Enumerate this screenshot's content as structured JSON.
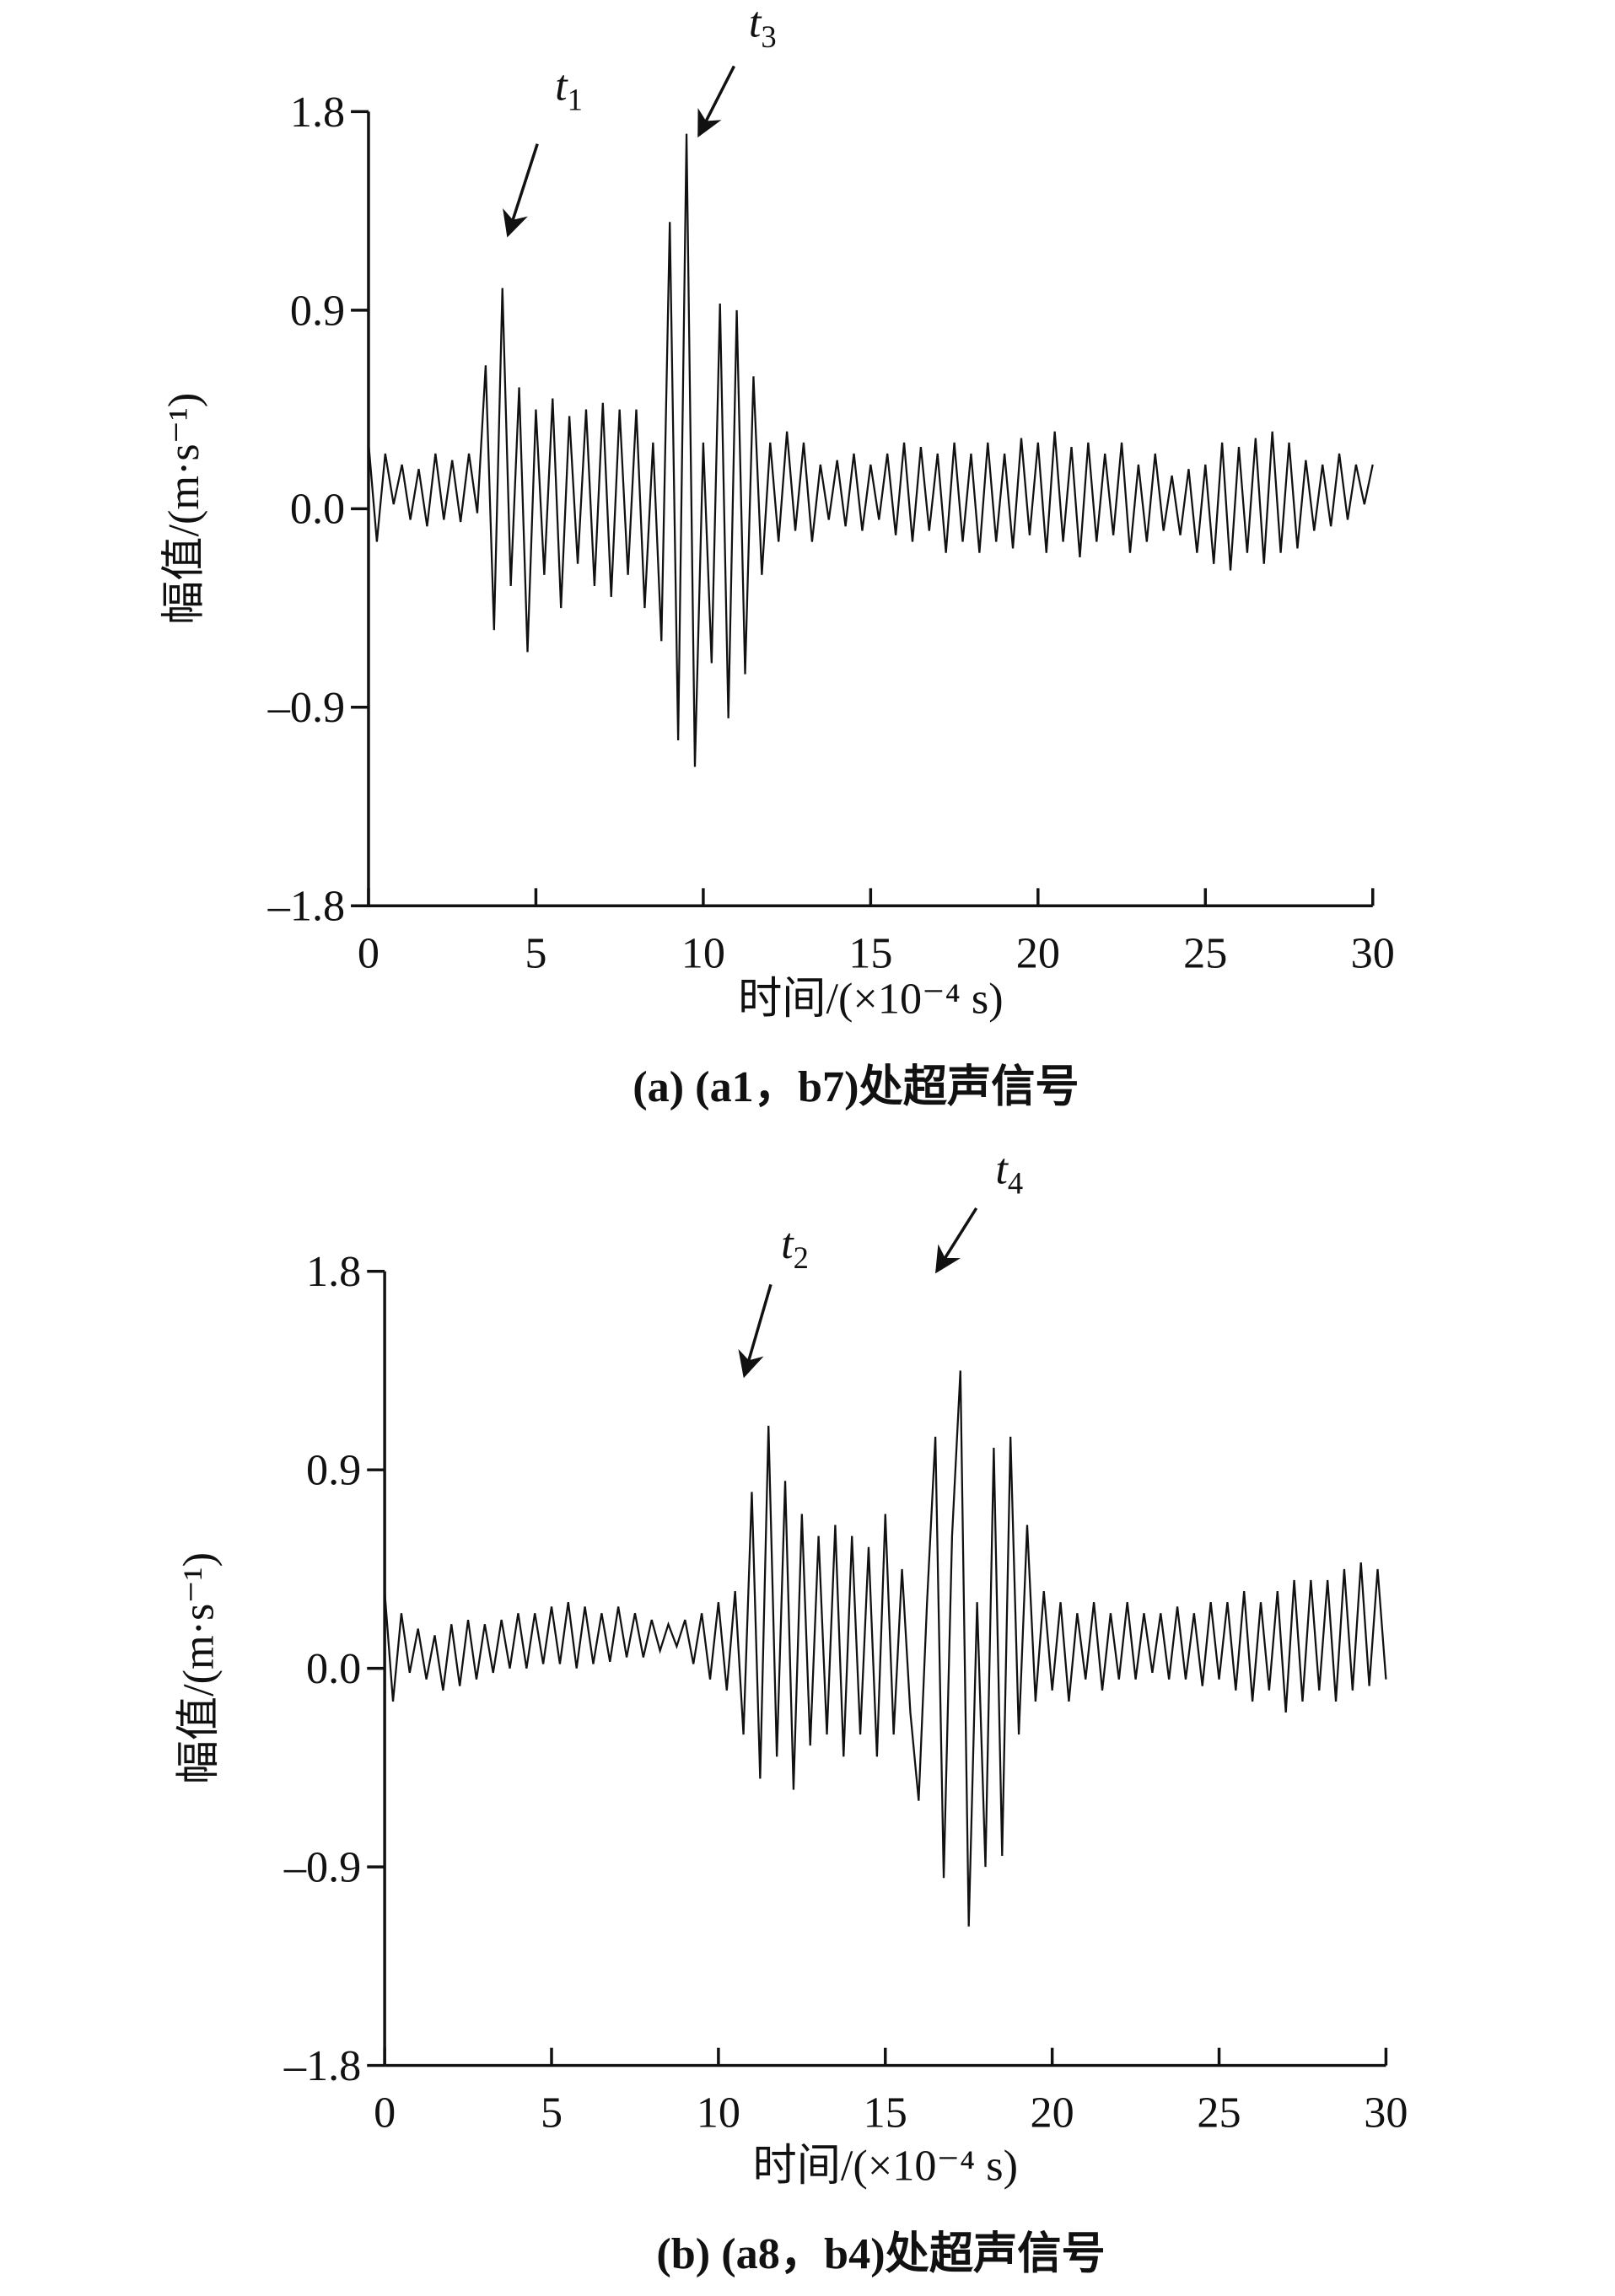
{
  "chart_data": [
    {
      "type": "line",
      "title": "(a) (a1，b7)处超声信号",
      "xlabel": "时间/(×10⁻⁴ s)",
      "ylabel": "幅值/(m·s⁻¹)",
      "xlim": [
        0,
        30
      ],
      "ylim": [
        -1.8,
        1.8
      ],
      "xticks": [
        0,
        5,
        10,
        15,
        20,
        25,
        30
      ],
      "yticks": [
        {
          "value": -1.8,
          "label": "–1.8"
        },
        {
          "value": -0.9,
          "label": "–0.9"
        },
        {
          "value": 0,
          "label": "0.0"
        },
        0.9,
        1.8
      ],
      "color": "#111111",
      "annotations": [
        {
          "text": "t",
          "sub": "1"
        },
        {
          "text": "t",
          "sub": "3"
        }
      ],
      "x": [
        0,
        0.25,
        0.5,
        0.75,
        1,
        1.25,
        1.5,
        1.75,
        2,
        2.25,
        2.5,
        2.75,
        3,
        3.25,
        3.5,
        3.75,
        4,
        4.25,
        4.5,
        4.75,
        5,
        5.25,
        5.5,
        5.75,
        6,
        6.25,
        6.5,
        6.75,
        7,
        7.25,
        7.5,
        7.75,
        8,
        8.25,
        8.5,
        8.75,
        9,
        9.25,
        9.5,
        9.75,
        10,
        10.25,
        10.5,
        10.75,
        11,
        11.25,
        11.5,
        11.75,
        12,
        12.25,
        12.5,
        12.75,
        13,
        13.25,
        13.5,
        13.75,
        14,
        14.25,
        14.5,
        14.75,
        15,
        15.25,
        15.5,
        15.75,
        16,
        16.25,
        16.5,
        16.75,
        17,
        17.25,
        17.5,
        17.75,
        18,
        18.25,
        18.5,
        18.75,
        19,
        19.25,
        19.5,
        19.75,
        20,
        20.25,
        20.5,
        20.75,
        21,
        21.25,
        21.5,
        21.75,
        22,
        22.25,
        22.5,
        22.75,
        23,
        23.25,
        23.5,
        23.75,
        24,
        24.25,
        24.5,
        24.75,
        25,
        25.25,
        25.5,
        25.75,
        26,
        26.25,
        26.5,
        26.75,
        27,
        27.25,
        27.5,
        27.75,
        28,
        28.25,
        28.5,
        28.75,
        29,
        29.25,
        29.5,
        29.75,
        30
      ],
      "values": [
        0.3,
        -0.15,
        0.25,
        0.02,
        0.2,
        -0.05,
        0.18,
        -0.08,
        0.25,
        -0.05,
        0.22,
        -0.06,
        0.25,
        -0.02,
        0.65,
        -0.55,
        1.0,
        -0.35,
        0.55,
        -0.65,
        0.45,
        -0.3,
        0.5,
        -0.45,
        0.42,
        -0.25,
        0.45,
        -0.35,
        0.48,
        -0.4,
        0.45,
        -0.3,
        0.45,
        -0.45,
        0.3,
        -0.6,
        1.3,
        -1.05,
        1.7,
        -1.17,
        0.3,
        -0.7,
        0.93,
        -0.95,
        0.9,
        -0.75,
        0.6,
        -0.3,
        0.3,
        -0.15,
        0.35,
        -0.1,
        0.3,
        -0.15,
        0.2,
        -0.05,
        0.22,
        -0.08,
        0.25,
        -0.1,
        0.2,
        -0.05,
        0.25,
        -0.12,
        0.3,
        -0.15,
        0.28,
        -0.1,
        0.25,
        -0.2,
        0.3,
        -0.15,
        0.25,
        -0.2,
        0.3,
        -0.15,
        0.25,
        -0.18,
        0.32,
        -0.12,
        0.3,
        -0.2,
        0.35,
        -0.15,
        0.28,
        -0.22,
        0.3,
        -0.15,
        0.25,
        -0.12,
        0.3,
        -0.2,
        0.2,
        -0.15,
        0.25,
        -0.1,
        0.15,
        -0.12,
        0.18,
        -0.2,
        0.2,
        -0.25,
        0.3,
        -0.28,
        0.28,
        -0.2,
        0.32,
        -0.25,
        0.35,
        -0.2,
        0.3,
        -0.18,
        0.22,
        -0.1,
        0.2,
        -0.08,
        0.25,
        -0.05,
        0.2,
        0.02,
        0.2
      ]
    },
    {
      "type": "line",
      "title": "(b) (a8，b4)处超声信号",
      "xlabel": "时间/(×10⁻⁴ s)",
      "ylabel": "幅值/(m·s⁻¹)",
      "xlim": [
        0,
        30
      ],
      "ylim": [
        -1.8,
        1.8
      ],
      "xticks": [
        0,
        5,
        10,
        15,
        20,
        25,
        30
      ],
      "yticks": [
        {
          "value": -1.8,
          "label": "–1.8"
        },
        {
          "value": -0.9,
          "label": "–0.9"
        },
        {
          "value": 0,
          "label": "0.0"
        },
        0.9,
        1.8
      ],
      "color": "#111111",
      "annotations": [
        {
          "text": "t",
          "sub": "2"
        },
        {
          "text": "t",
          "sub": "4"
        }
      ],
      "x": [
        0,
        0.25,
        0.5,
        0.75,
        1,
        1.25,
        1.5,
        1.75,
        2,
        2.25,
        2.5,
        2.75,
        3,
        3.25,
        3.5,
        3.75,
        4,
        4.25,
        4.5,
        4.75,
        5,
        5.25,
        5.5,
        5.75,
        6,
        6.25,
        6.5,
        6.75,
        7,
        7.25,
        7.5,
        7.75,
        8,
        8.25,
        8.5,
        8.75,
        9,
        9.25,
        9.5,
        9.75,
        10,
        10.25,
        10.5,
        10.75,
        11,
        11.25,
        11.5,
        11.75,
        12,
        12.25,
        12.5,
        12.75,
        13,
        13.25,
        13.5,
        13.75,
        14,
        14.25,
        14.5,
        14.75,
        15,
        15.25,
        15.5,
        15.75,
        16,
        16.25,
        16.5,
        16.75,
        17,
        17.25,
        17.5,
        17.75,
        18,
        18.25,
        18.5,
        18.75,
        19,
        19.25,
        19.5,
        19.75,
        20,
        20.25,
        20.5,
        20.75,
        21,
        21.25,
        21.5,
        21.75,
        22,
        22.25,
        22.5,
        22.75,
        23,
        23.25,
        23.5,
        23.75,
        24,
        24.25,
        24.5,
        24.75,
        25,
        25.25,
        25.5,
        25.75,
        26,
        26.25,
        26.5,
        26.75,
        27,
        27.25,
        27.5,
        27.75,
        28,
        28.25,
        28.5,
        28.75,
        29,
        29.25,
        29.5,
        29.75,
        30
      ],
      "values": [
        0.35,
        -0.15,
        0.25,
        -0.02,
        0.18,
        -0.05,
        0.15,
        -0.1,
        0.2,
        -0.08,
        0.22,
        -0.05,
        0.2,
        -0.02,
        0.22,
        0.0,
        0.25,
        0.0,
        0.25,
        0.02,
        0.28,
        0.02,
        0.3,
        0.0,
        0.28,
        0.02,
        0.25,
        0.03,
        0.28,
        0.05,
        0.25,
        0.05,
        0.22,
        0.08,
        0.2,
        0.1,
        0.22,
        0.02,
        0.25,
        -0.05,
        0.3,
        -0.1,
        0.35,
        -0.3,
        0.8,
        -0.5,
        1.1,
        -0.4,
        0.85,
        -0.55,
        0.7,
        -0.35,
        0.6,
        -0.3,
        0.65,
        -0.4,
        0.6,
        -0.3,
        0.55,
        -0.4,
        0.7,
        -0.3,
        0.45,
        -0.2,
        -0.6,
        0.3,
        1.05,
        -0.95,
        0.6,
        1.35,
        -1.17,
        0.3,
        -0.9,
        1.0,
        -0.85,
        1.05,
        -0.3,
        0.65,
        -0.15,
        0.35,
        -0.1,
        0.3,
        -0.15,
        0.25,
        -0.05,
        0.3,
        -0.1,
        0.25,
        -0.05,
        0.3,
        -0.05,
        0.25,
        -0.02,
        0.25,
        -0.05,
        0.28,
        -0.05,
        0.25,
        -0.08,
        0.3,
        -0.05,
        0.3,
        -0.1,
        0.35,
        -0.15,
        0.3,
        -0.1,
        0.35,
        -0.2,
        0.4,
        -0.15,
        0.4,
        -0.1,
        0.4,
        -0.15,
        0.45,
        -0.1,
        0.48,
        -0.08,
        0.45,
        -0.05
      ]
    }
  ]
}
